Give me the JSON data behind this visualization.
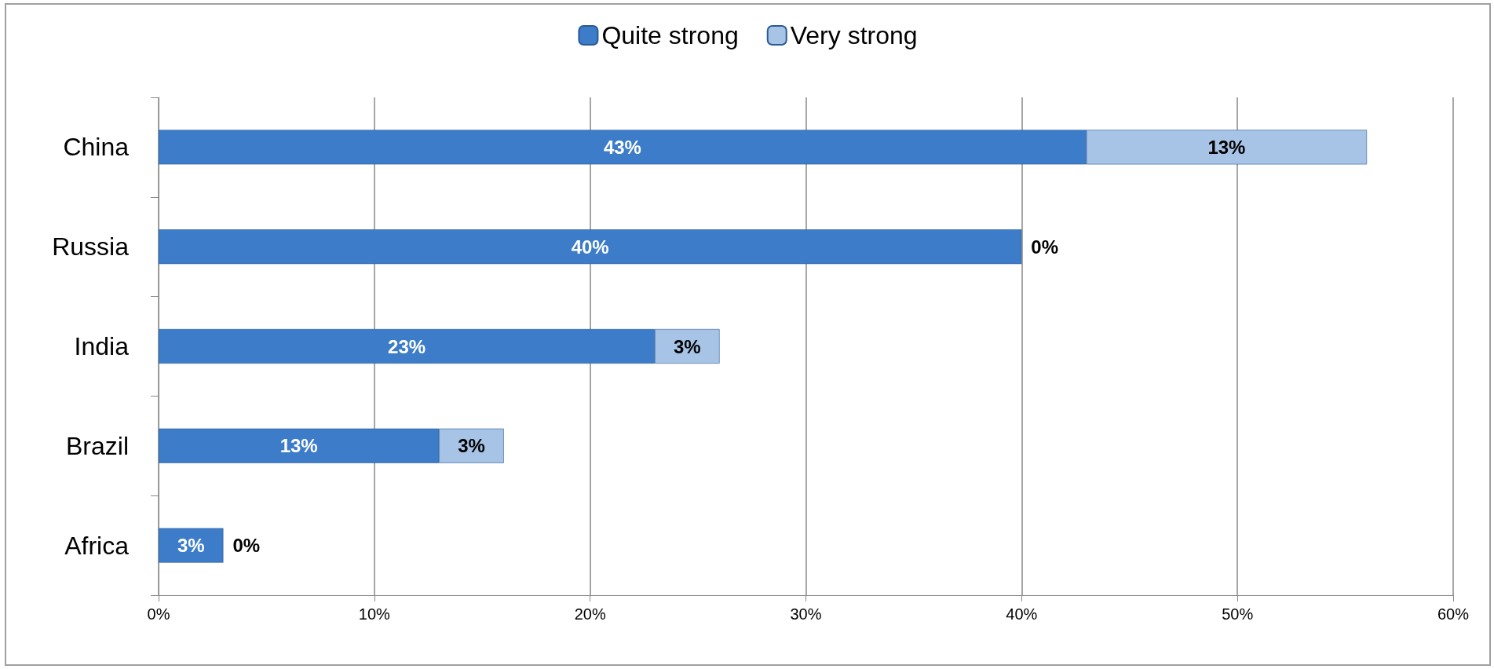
{
  "chart_data": {
    "type": "bar",
    "orientation": "horizontal",
    "stacked": true,
    "categories": [
      "China",
      "Russia",
      "India",
      "Brazil",
      "Africa"
    ],
    "series": [
      {
        "name": "Quite strong",
        "color": "#3c7cc9",
        "values": [
          43,
          40,
          23,
          13,
          3
        ],
        "value_labels": [
          "43%",
          "40%",
          "23%",
          "13%",
          "3%"
        ]
      },
      {
        "name": "Very strong",
        "color": "#a7c4e6",
        "values": [
          13,
          0,
          3,
          3,
          0
        ],
        "value_labels": [
          "13%",
          "0%",
          "3%",
          "3%",
          "0%"
        ]
      }
    ],
    "xlim": [
      0,
      60
    ],
    "xticks": [
      {
        "value": 0,
        "label": "0%"
      },
      {
        "value": 10,
        "label": "10%"
      },
      {
        "value": 20,
        "label": "20%"
      },
      {
        "value": 30,
        "label": "30%"
      },
      {
        "value": 40,
        "label": "40%"
      },
      {
        "value": 50,
        "label": "50%"
      },
      {
        "value": 60,
        "label": "60%"
      }
    ],
    "grid": "x",
    "legend": "top"
  }
}
